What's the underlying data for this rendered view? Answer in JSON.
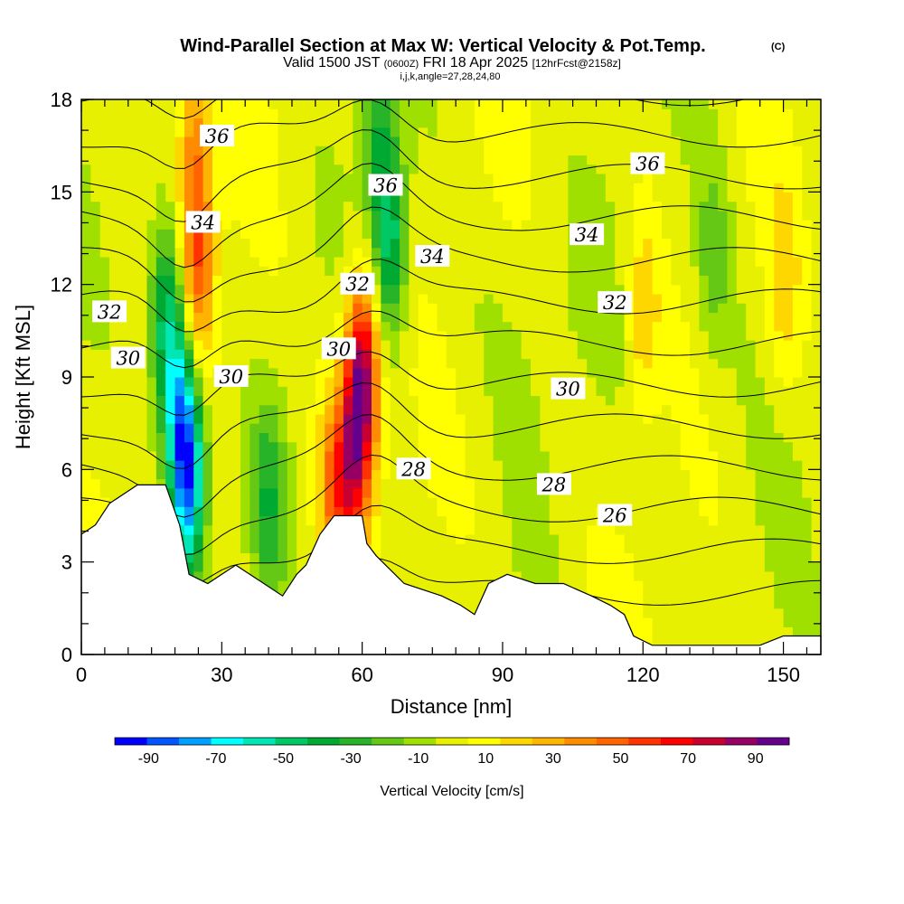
{
  "header": {
    "title": "Wind-Parallel Section at Max W: Vertical Velocity & Pot.Temp.",
    "copyright": "(C)",
    "valid_prefix": "Valid 1500 JST",
    "valid_utc": "(0600Z)",
    "valid_date": "FRI 18 Apr 2025",
    "forecast_note": "[12hrFcst@2158z]",
    "grid_info": "i,j,k,angle=27,28,24,80"
  },
  "chart_data": {
    "type": "heatmap",
    "xlabel": "Distance [nm]",
    "ylabel": "Height [Kft MSL]",
    "xlim": [
      0,
      158
    ],
    "ylim": [
      0,
      18
    ],
    "x_ticks": [
      0,
      30,
      60,
      90,
      120,
      150
    ],
    "y_ticks": [
      0,
      3,
      6,
      9,
      12,
      15,
      18
    ],
    "colorbar": {
      "label": "Vertical Velocity [cm/s]",
      "tick_labels": [
        "-90",
        "-70",
        "-50",
        "-30",
        "-10",
        "10",
        "30",
        "50",
        "70",
        "90"
      ],
      "bin_edges": [
        -100,
        -90,
        -80,
        -70,
        -60,
        -50,
        -40,
        -30,
        -20,
        -10,
        0,
        10,
        20,
        30,
        40,
        50,
        60,
        70,
        80,
        90,
        100
      ],
      "colors": [
        "#0000ff",
        "#0055ff",
        "#00a0ff",
        "#00ffff",
        "#00e6b4",
        "#00c864",
        "#00aa32",
        "#28b428",
        "#64c814",
        "#a0e000",
        "#e6f000",
        "#ffff00",
        "#ffd700",
        "#ffb400",
        "#ff8c00",
        "#ff6400",
        "#ff3200",
        "#ff0000",
        "#c80032",
        "#960064",
        "#64008c"
      ]
    },
    "velocity_features": [
      {
        "x": 18,
        "z": 11,
        "w": -50
      },
      {
        "x": 21,
        "z": 8,
        "w": -60
      },
      {
        "x": 23,
        "z": 5.5,
        "w": -80
      },
      {
        "x": 25,
        "z": 12.5,
        "w": 50
      },
      {
        "x": 24,
        "z": 16.5,
        "w": 35
      },
      {
        "x": 60,
        "z": 9,
        "w": 90
      },
      {
        "x": 58,
        "z": 6,
        "w": 50
      },
      {
        "x": 54,
        "z": 5.5,
        "w": 40
      },
      {
        "x": 66,
        "z": 13.5,
        "w": -50
      },
      {
        "x": 63,
        "z": 17,
        "w": -30
      },
      {
        "x": 40,
        "z": 5,
        "w": -30
      },
      {
        "x": 135,
        "z": 13,
        "w": -20
      },
      {
        "x": 120,
        "z": 11,
        "w": 25
      },
      {
        "x": 150,
        "z": 12,
        "w": 20
      }
    ],
    "theta_contours": {
      "interval": 1,
      "labels": [
        {
          "value": "36",
          "x": 29,
          "z": 16.8
        },
        {
          "value": "36",
          "x": 65,
          "z": 15.2
        },
        {
          "value": "36",
          "x": 121,
          "z": 15.9
        },
        {
          "value": "34",
          "x": 26,
          "z": 14.0
        },
        {
          "value": "34",
          "x": 75,
          "z": 12.9
        },
        {
          "value": "34",
          "x": 108,
          "z": 13.6
        },
        {
          "value": "32",
          "x": 6,
          "z": 11.1
        },
        {
          "value": "32",
          "x": 59,
          "z": 12.0
        },
        {
          "value": "32",
          "x": 114,
          "z": 11.4
        },
        {
          "value": "30",
          "x": 10,
          "z": 9.6
        },
        {
          "value": "30",
          "x": 32,
          "z": 9.0
        },
        {
          "value": "30",
          "x": 55,
          "z": 9.9
        },
        {
          "value": "30",
          "x": 104,
          "z": 8.6
        },
        {
          "value": "28",
          "x": 71,
          "z": 6.0
        },
        {
          "value": "28",
          "x": 101,
          "z": 5.5
        },
        {
          "value": "26",
          "x": 114,
          "z": 4.5
        }
      ]
    },
    "terrain": [
      [
        0,
        3.9
      ],
      [
        3,
        4.2
      ],
      [
        6,
        4.9
      ],
      [
        9,
        5.2
      ],
      [
        12,
        5.5
      ],
      [
        18,
        5.5
      ],
      [
        21,
        4.2
      ],
      [
        23,
        2.6
      ],
      [
        27,
        2.3
      ],
      [
        33,
        2.9
      ],
      [
        39,
        2.3
      ],
      [
        43,
        1.9
      ],
      [
        46,
        2.6
      ],
      [
        48,
        2.9
      ],
      [
        51,
        3.9
      ],
      [
        54,
        4.5
      ],
      [
        60,
        4.5
      ],
      [
        61,
        3.6
      ],
      [
        63,
        3.2
      ],
      [
        65,
        2.9
      ],
      [
        67,
        2.6
      ],
      [
        69,
        2.3
      ],
      [
        77,
        1.9
      ],
      [
        81,
        1.6
      ],
      [
        84,
        1.3
      ],
      [
        87,
        2.3
      ],
      [
        91,
        2.6
      ],
      [
        97,
        2.3
      ],
      [
        103,
        2.3
      ],
      [
        109,
        1.9
      ],
      [
        113,
        1.6
      ],
      [
        116,
        1.3
      ],
      [
        118,
        0.6
      ],
      [
        122,
        0.3
      ],
      [
        145,
        0.3
      ],
      [
        150,
        0.6
      ],
      [
        158,
        0.6
      ]
    ]
  }
}
